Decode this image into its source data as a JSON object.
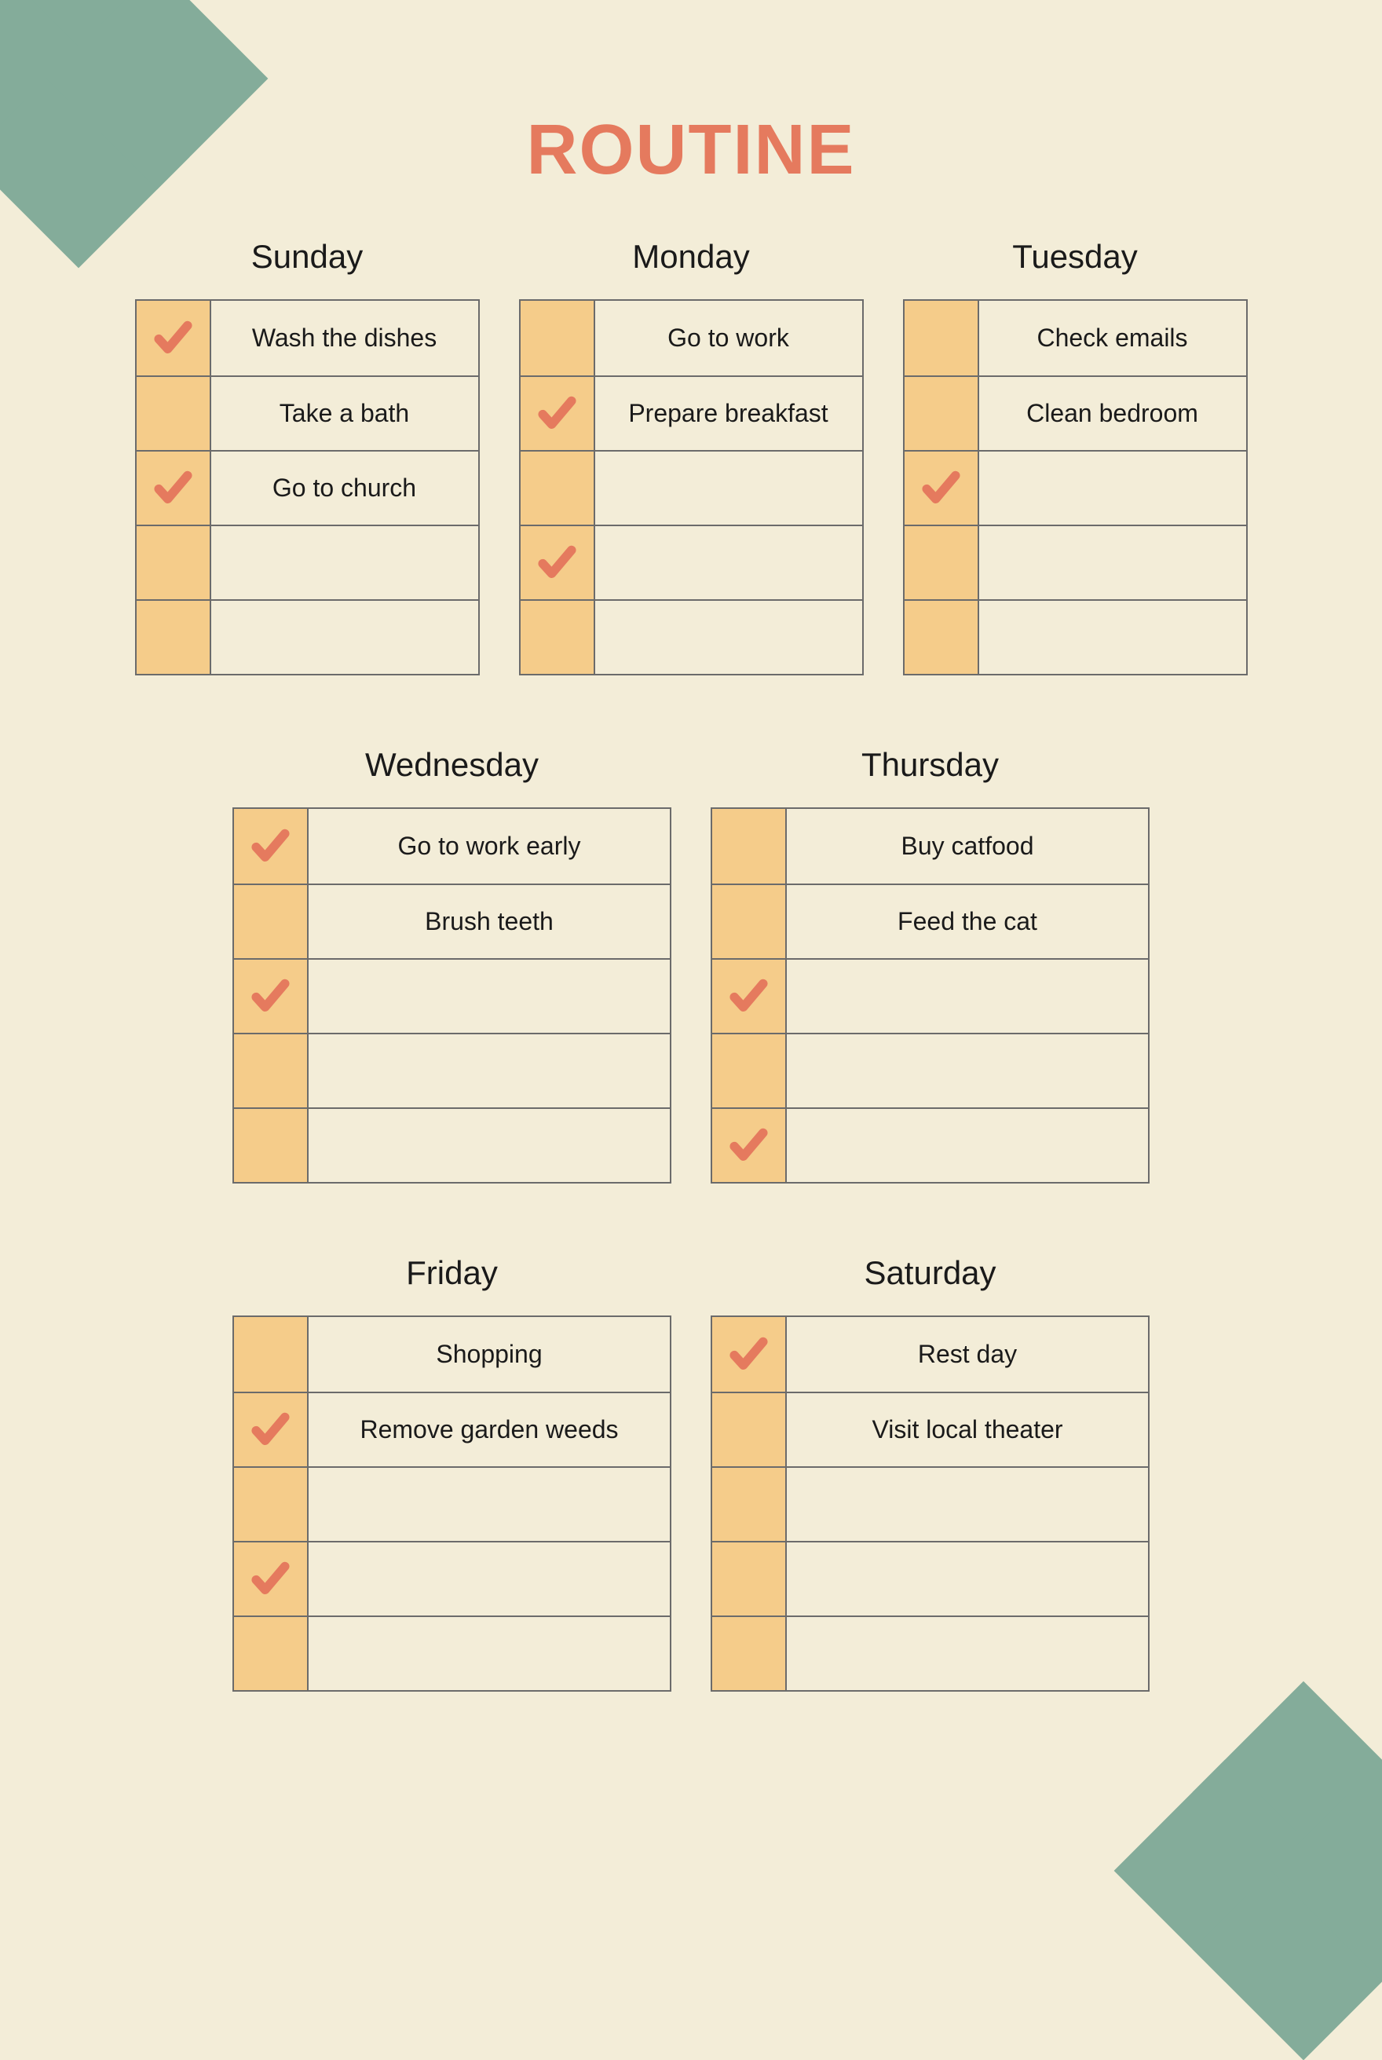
{
  "title": "ROUTINE",
  "colors": {
    "background": "#f3edd8",
    "title": "#e57a5e",
    "checkbox_bg": "#f5cc8a",
    "border": "#6b6b6b",
    "text": "#1a1a1a",
    "check_icon": "#e57a5e",
    "decoration_green": "#84ac9a"
  },
  "layout": {
    "rows": [
      3,
      2,
      2
    ],
    "row_width_class": [
      "w-narrow",
      "w-wide",
      "w-wide"
    ],
    "rows_per_table": 5
  },
  "days": [
    {
      "name": "Sunday",
      "tasks": [
        {
          "checked": true,
          "label": "Wash the dishes"
        },
        {
          "checked": false,
          "label": "Take a bath"
        },
        {
          "checked": true,
          "label": "Go to church"
        },
        {
          "checked": false,
          "label": ""
        },
        {
          "checked": false,
          "label": ""
        }
      ]
    },
    {
      "name": "Monday",
      "tasks": [
        {
          "checked": false,
          "label": "Go to work"
        },
        {
          "checked": true,
          "label": "Prepare breakfast"
        },
        {
          "checked": false,
          "label": ""
        },
        {
          "checked": true,
          "label": ""
        },
        {
          "checked": false,
          "label": ""
        }
      ]
    },
    {
      "name": "Tuesday",
      "tasks": [
        {
          "checked": false,
          "label": "Check emails"
        },
        {
          "checked": false,
          "label": "Clean bedroom"
        },
        {
          "checked": true,
          "label": ""
        },
        {
          "checked": false,
          "label": ""
        },
        {
          "checked": false,
          "label": ""
        }
      ]
    },
    {
      "name": "Wednesday",
      "tasks": [
        {
          "checked": true,
          "label": "Go to work early"
        },
        {
          "checked": false,
          "label": "Brush teeth"
        },
        {
          "checked": true,
          "label": ""
        },
        {
          "checked": false,
          "label": ""
        },
        {
          "checked": false,
          "label": ""
        }
      ]
    },
    {
      "name": "Thursday",
      "tasks": [
        {
          "checked": false,
          "label": "Buy catfood"
        },
        {
          "checked": false,
          "label": "Feed the cat"
        },
        {
          "checked": true,
          "label": ""
        },
        {
          "checked": false,
          "label": ""
        },
        {
          "checked": true,
          "label": ""
        }
      ]
    },
    {
      "name": "Friday",
      "tasks": [
        {
          "checked": false,
          "label": "Shopping"
        },
        {
          "checked": true,
          "label": "Remove garden weeds"
        },
        {
          "checked": false,
          "label": ""
        },
        {
          "checked": true,
          "label": ""
        },
        {
          "checked": false,
          "label": ""
        }
      ]
    },
    {
      "name": "Saturday",
      "tasks": [
        {
          "checked": true,
          "label": "Rest day"
        },
        {
          "checked": false,
          "label": "Visit local theater"
        },
        {
          "checked": false,
          "label": ""
        },
        {
          "checked": false,
          "label": ""
        },
        {
          "checked": false,
          "label": ""
        }
      ]
    }
  ]
}
